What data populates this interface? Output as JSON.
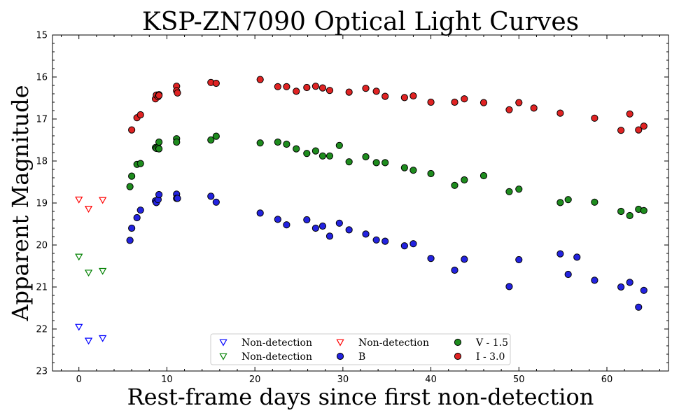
{
  "chart_data": {
    "type": "scatter",
    "title": "KSP-ZN7090 Optical Light Curves",
    "xlabel": "Rest-frame days since first non-detection",
    "ylabel": "Apparent Magnitude",
    "xlim": [
      -3,
      67
    ],
    "ylim": [
      23,
      15
    ],
    "y_inverted": true,
    "x_ticks": [
      0,
      10,
      20,
      30,
      40,
      50,
      60
    ],
    "y_ticks": [
      15,
      16,
      17,
      18,
      19,
      20,
      21,
      22,
      23
    ],
    "grid": false,
    "legend": {
      "location": "bottom-center",
      "columns": 3
    },
    "series": [
      {
        "name": "Non-detection",
        "marker": "triangle-down-open",
        "color": "#0000ff",
        "points": [
          [
            0.0,
            21.95
          ],
          [
            1.1,
            22.28
          ],
          [
            2.7,
            22.22
          ]
        ]
      },
      {
        "name": "Non-detection",
        "marker": "triangle-down-open",
        "color": "#008000",
        "points": [
          [
            0.0,
            20.28
          ],
          [
            1.1,
            20.66
          ],
          [
            2.7,
            20.62
          ]
        ]
      },
      {
        "name": "Non-detection",
        "marker": "triangle-down-open",
        "color": "#ff0000",
        "points": [
          [
            0.0,
            18.92
          ],
          [
            1.1,
            19.14
          ],
          [
            2.7,
            18.93
          ]
        ]
      },
      {
        "name": "B",
        "marker": "circle",
        "color": "#2323e0",
        "points": [
          [
            5.8,
            19.89
          ],
          [
            6.0,
            19.6
          ],
          [
            6.6,
            19.35
          ],
          [
            7.0,
            19.17
          ],
          [
            8.7,
            18.95
          ],
          [
            8.8,
            18.99
          ],
          [
            9.0,
            18.92
          ],
          [
            9.1,
            18.8
          ],
          [
            11.1,
            18.79
          ],
          [
            11.1,
            18.89
          ],
          [
            11.2,
            18.89
          ],
          [
            15.0,
            18.84
          ],
          [
            15.6,
            18.98
          ],
          [
            20.6,
            19.24
          ],
          [
            22.6,
            19.39
          ],
          [
            23.6,
            19.52
          ],
          [
            25.9,
            19.4
          ],
          [
            26.9,
            19.6
          ],
          [
            27.7,
            19.55
          ],
          [
            28.5,
            19.79
          ],
          [
            29.6,
            19.48
          ],
          [
            30.7,
            19.64
          ],
          [
            32.6,
            19.74
          ],
          [
            33.8,
            19.88
          ],
          [
            34.8,
            19.91
          ],
          [
            37.0,
            20.02
          ],
          [
            38.0,
            19.97
          ],
          [
            40.0,
            20.32
          ],
          [
            42.7,
            20.6
          ],
          [
            43.8,
            20.34
          ],
          [
            48.9,
            20.99
          ],
          [
            50.0,
            20.35
          ],
          [
            54.7,
            20.21
          ],
          [
            55.6,
            20.7
          ],
          [
            56.6,
            20.29
          ],
          [
            58.6,
            20.84
          ],
          [
            61.6,
            21.0
          ],
          [
            62.6,
            20.89
          ],
          [
            63.6,
            21.48
          ],
          [
            64.2,
            21.08
          ]
        ]
      },
      {
        "name": "V - 1.5",
        "marker": "circle",
        "color": "#1e8c1e",
        "points": [
          [
            5.8,
            18.61
          ],
          [
            6.0,
            18.36
          ],
          [
            6.6,
            18.08
          ],
          [
            7.0,
            18.06
          ],
          [
            8.7,
            17.68
          ],
          [
            8.8,
            17.7
          ],
          [
            9.0,
            17.68
          ],
          [
            9.1,
            17.55
          ],
          [
            9.1,
            17.71
          ],
          [
            11.1,
            17.47
          ],
          [
            11.1,
            17.55
          ],
          [
            15.0,
            17.5
          ],
          [
            15.6,
            17.41
          ],
          [
            20.6,
            17.57
          ],
          [
            22.6,
            17.55
          ],
          [
            23.6,
            17.6
          ],
          [
            24.7,
            17.71
          ],
          [
            25.9,
            17.82
          ],
          [
            26.9,
            17.76
          ],
          [
            27.7,
            17.88
          ],
          [
            28.5,
            17.88
          ],
          [
            29.6,
            17.63
          ],
          [
            30.7,
            18.02
          ],
          [
            32.6,
            17.9
          ],
          [
            33.8,
            18.04
          ],
          [
            34.8,
            18.04
          ],
          [
            37.0,
            18.16
          ],
          [
            38.0,
            18.22
          ],
          [
            40.0,
            18.3
          ],
          [
            42.7,
            18.58
          ],
          [
            43.8,
            18.45
          ],
          [
            46.0,
            18.35
          ],
          [
            48.9,
            18.73
          ],
          [
            50.0,
            18.67
          ],
          [
            54.7,
            18.99
          ],
          [
            55.6,
            18.92
          ],
          [
            58.6,
            18.98
          ],
          [
            61.6,
            19.2
          ],
          [
            62.6,
            19.3
          ],
          [
            63.6,
            19.15
          ],
          [
            64.2,
            19.18
          ]
        ]
      },
      {
        "name": "I - 3.0",
        "marker": "circle",
        "color": "#e02323",
        "points": [
          [
            6.0,
            17.26
          ],
          [
            6.6,
            16.97
          ],
          [
            7.0,
            16.9
          ],
          [
            8.7,
            16.52
          ],
          [
            8.8,
            16.43
          ],
          [
            9.0,
            16.47
          ],
          [
            9.1,
            16.42
          ],
          [
            9.1,
            16.44
          ],
          [
            11.1,
            16.22
          ],
          [
            11.1,
            16.33
          ],
          [
            11.2,
            16.38
          ],
          [
            15.0,
            16.13
          ],
          [
            15.6,
            16.15
          ],
          [
            20.6,
            16.06
          ],
          [
            22.6,
            16.23
          ],
          [
            23.6,
            16.23
          ],
          [
            24.7,
            16.34
          ],
          [
            25.9,
            16.25
          ],
          [
            26.9,
            16.22
          ],
          [
            27.7,
            16.26
          ],
          [
            28.5,
            16.32
          ],
          [
            30.7,
            16.36
          ],
          [
            32.6,
            16.27
          ],
          [
            33.8,
            16.34
          ],
          [
            34.8,
            16.46
          ],
          [
            37.0,
            16.49
          ],
          [
            38.0,
            16.45
          ],
          [
            40.0,
            16.6
          ],
          [
            42.7,
            16.6
          ],
          [
            43.8,
            16.52
          ],
          [
            46.0,
            16.61
          ],
          [
            48.9,
            16.78
          ],
          [
            50.0,
            16.61
          ],
          [
            51.7,
            16.74
          ],
          [
            54.7,
            16.86
          ],
          [
            58.6,
            16.98
          ],
          [
            61.6,
            17.27
          ],
          [
            62.6,
            16.88
          ],
          [
            63.6,
            17.26
          ],
          [
            64.2,
            17.17
          ]
        ]
      }
    ],
    "legend_order": [
      0,
      1,
      2,
      3,
      4,
      5
    ]
  }
}
